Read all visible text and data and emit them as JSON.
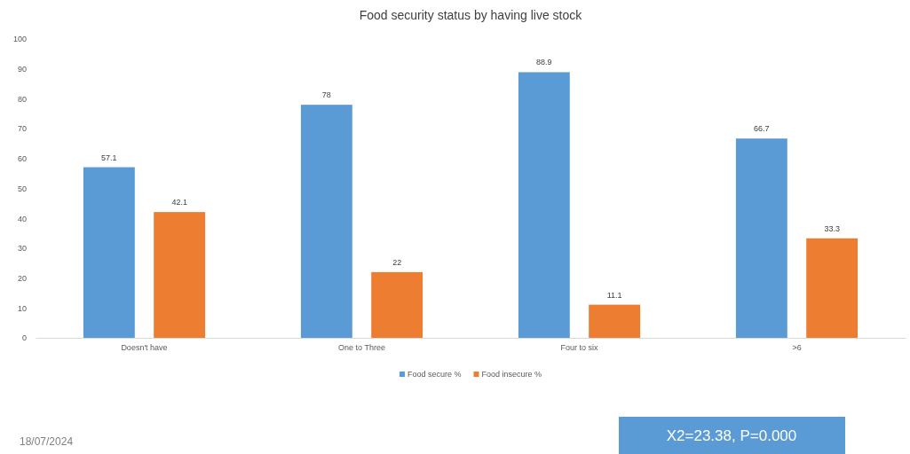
{
  "chart_data": {
    "type": "bar",
    "title": "Food security status by having live stock",
    "categories": [
      "Doesn't have",
      "One to Three",
      "Four to six",
      ">6"
    ],
    "series": [
      {
        "name": "Food secure %",
        "color": "#5b9bd5",
        "values": [
          57.1,
          78,
          88.9,
          66.7
        ]
      },
      {
        "name": "Food insecure %",
        "color": "#ed7d31",
        "values": [
          42.1,
          22,
          11.1,
          33.3
        ]
      }
    ],
    "ylim": [
      0,
      100
    ],
    "yticks": [
      0,
      10,
      20,
      30,
      40,
      50,
      60,
      70,
      80,
      90,
      100
    ],
    "grid": false,
    "legend": "bottom",
    "data_labels": true,
    "annotations": [
      "18/07/2024",
      "X2=23.38, P=0.000"
    ]
  }
}
